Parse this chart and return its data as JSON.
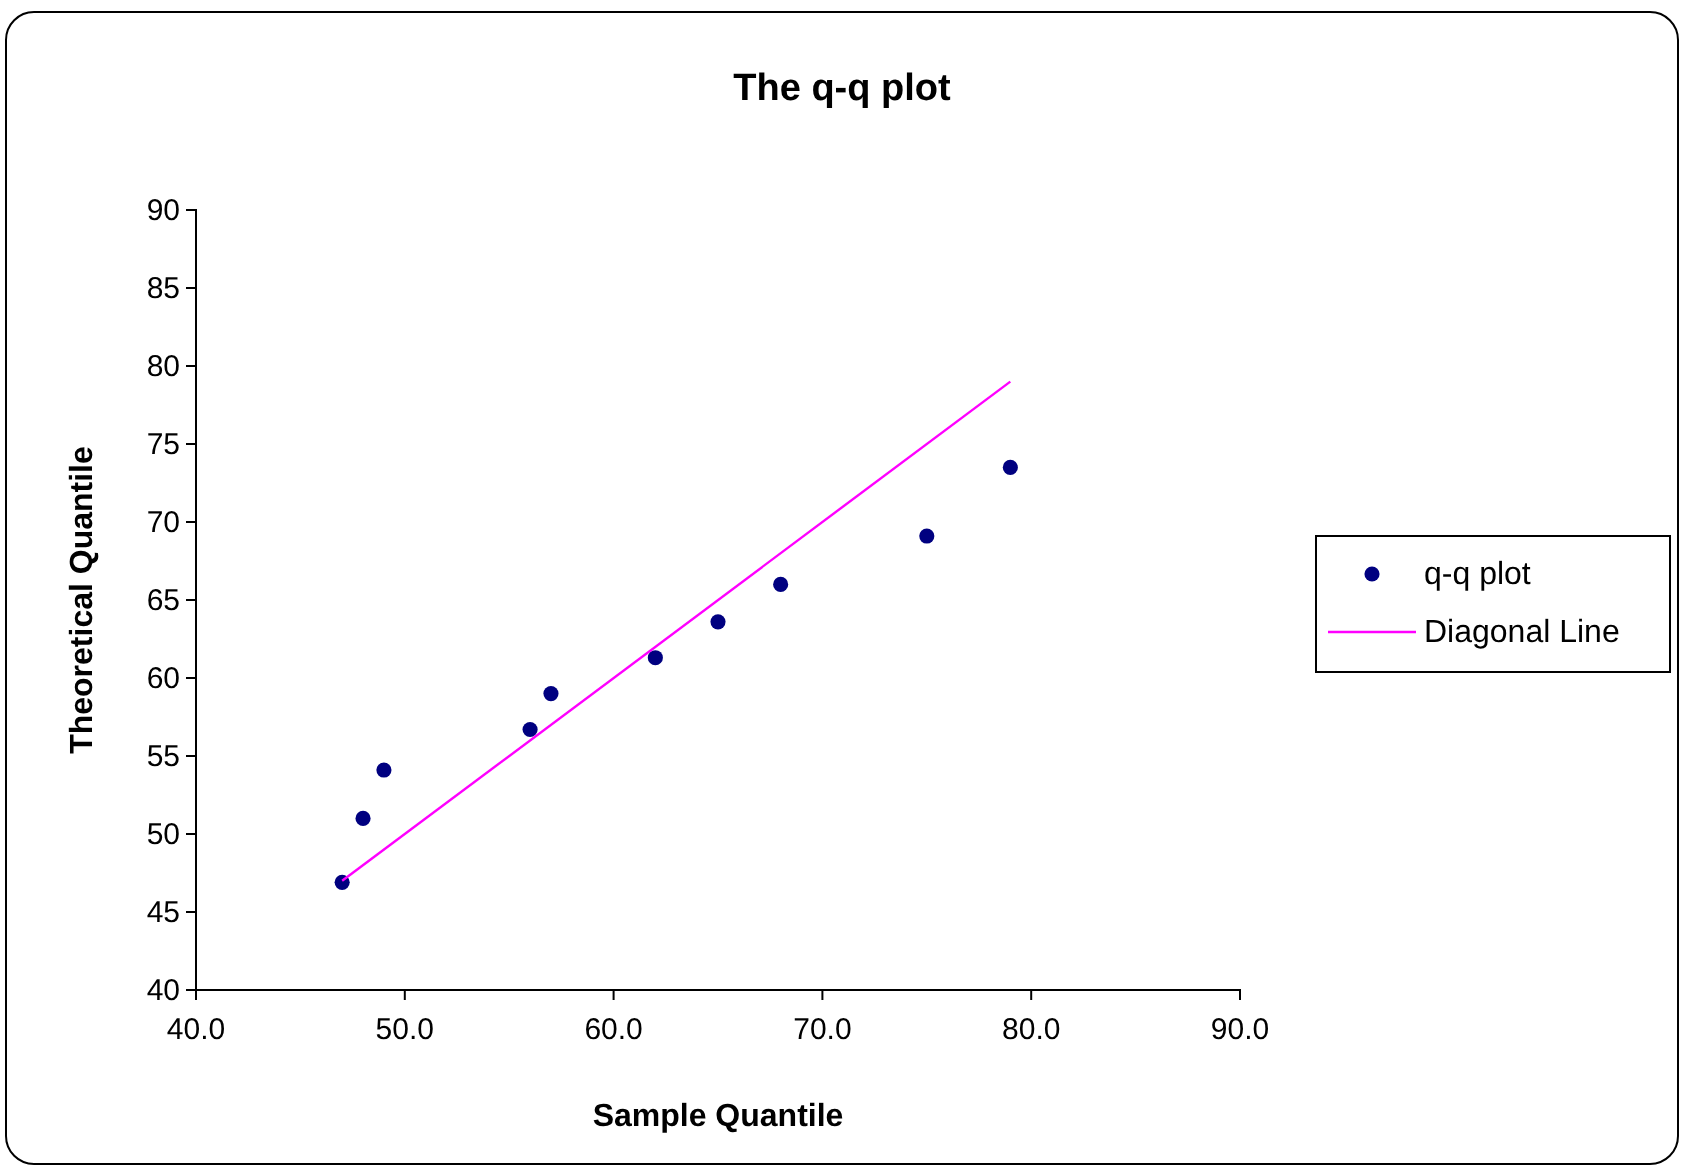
{
  "chart_data": {
    "type": "scatter",
    "title": "The q-q plot",
    "xlabel": "Sample Quantile",
    "ylabel": "Theoretical Quantile",
    "xlim": [
      40,
      90
    ],
    "xticks": [
      {
        "value": 40,
        "label": "40.0"
      },
      {
        "value": 50,
        "label": "50.0"
      },
      {
        "value": 60,
        "label": "60.0"
      },
      {
        "value": 70,
        "label": "70.0"
      },
      {
        "value": 80,
        "label": "80.0"
      },
      {
        "value": 90,
        "label": "90.0"
      }
    ],
    "ylim": [
      40,
      90
    ],
    "yticks": [
      40,
      45,
      50,
      55,
      60,
      65,
      70,
      75,
      80,
      85,
      90
    ],
    "series": [
      {
        "name": "q-q plot",
        "color": "#000080",
        "marker": "circle",
        "x": [
          47,
          48,
          49,
          56,
          57,
          62,
          65,
          68,
          75,
          79
        ],
        "values": [
          46.9,
          51,
          54.1,
          56.7,
          59,
          61.3,
          63.6,
          66,
          69.1,
          73.5
        ]
      },
      {
        "name": "Diagonal Line",
        "type": "line",
        "color": "#ff00ff",
        "marker": "none",
        "line_style": "solid",
        "x": [
          47,
          79
        ],
        "values": [
          47,
          79
        ]
      }
    ],
    "grid": false,
    "legend": "right"
  }
}
